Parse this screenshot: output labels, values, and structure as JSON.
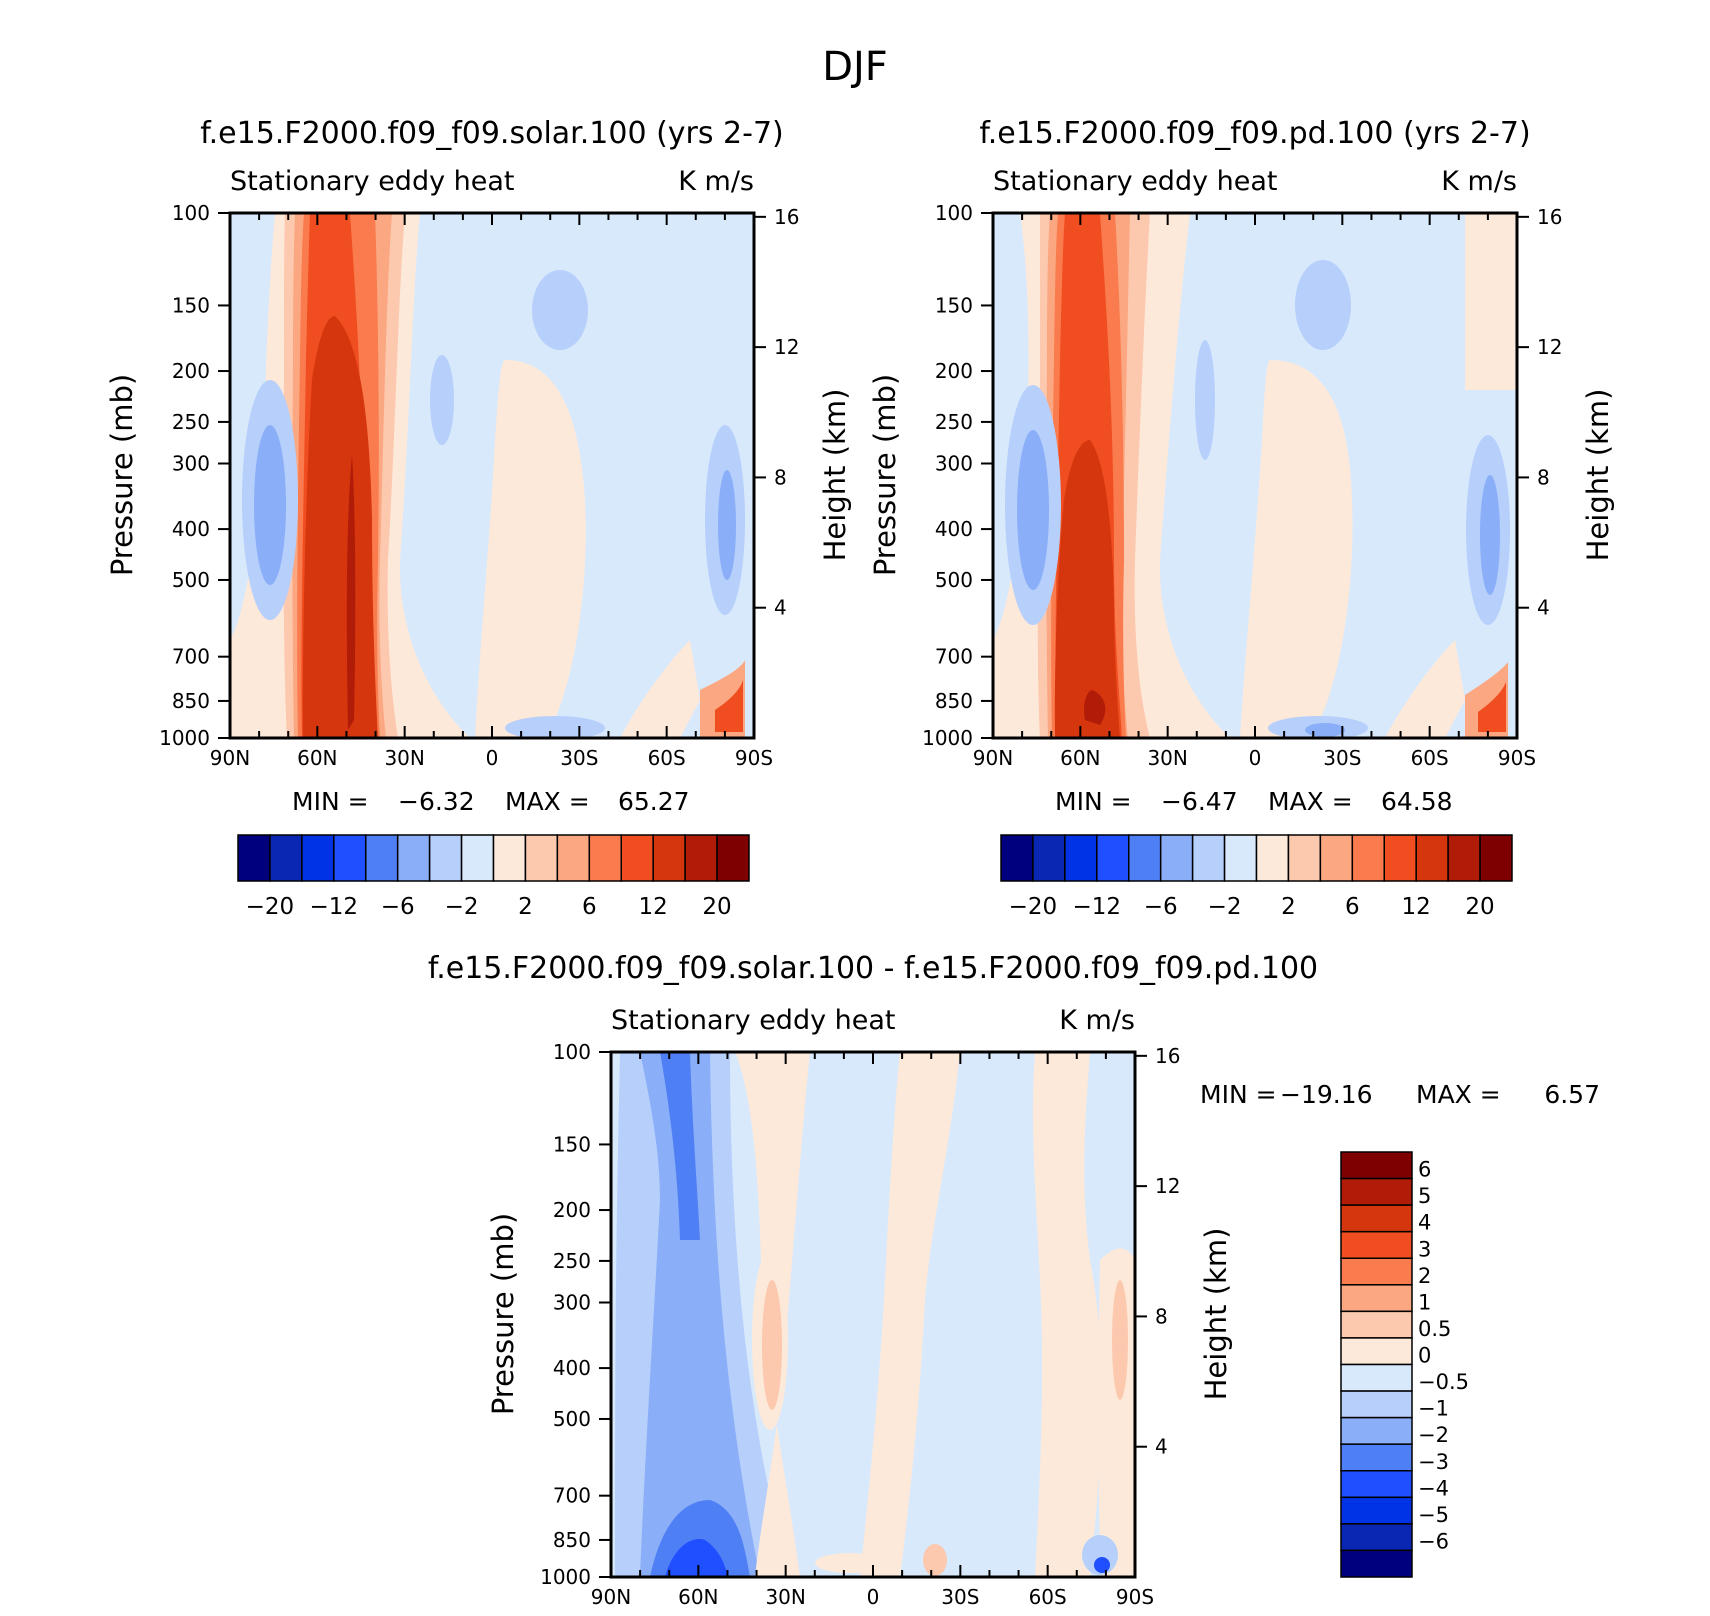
{
  "figure_title": "DJF",
  "chart_data": [
    {
      "type": "contour",
      "title": "f.e15.F2000.f09_f09.solar.100 (yrs 2-7)",
      "subtitle_left": "Stationary eddy heat",
      "subtitle_right": "K m/s",
      "ylabel": "Pressure (mb)",
      "y2label": "Height (km)",
      "x_ticks": [
        "90N",
        "60N",
        "30N",
        "0",
        "30S",
        "60S",
        "90S"
      ],
      "y_ticks": [
        "100",
        "150",
        "200",
        "250",
        "300",
        "400",
        "500",
        "700",
        "850",
        "1000"
      ],
      "y2_ticks": [
        "16",
        "12",
        "8",
        "4"
      ],
      "y_scale": "log-pressure",
      "xlim": [
        90,
        -90
      ],
      "ylim": [
        1000,
        100
      ],
      "stats": {
        "min_label": "MIN =",
        "min": "-6.32",
        "max_label": "MAX =",
        "max": "65.27"
      },
      "colorbar": {
        "orientation": "horizontal",
        "labels": [
          "-20",
          "-12",
          "-6",
          "-2",
          "2",
          "6",
          "12",
          "20"
        ],
        "levels": [
          -20,
          -16,
          -12,
          -8,
          -6,
          -4,
          -2,
          0,
          2,
          4,
          6,
          8,
          12,
          16,
          20
        ]
      }
    },
    {
      "type": "contour",
      "title": "f.e15.F2000.f09_f09.pd.100 (yrs 2-7)",
      "subtitle_left": "Stationary eddy heat",
      "subtitle_right": "K m/s",
      "ylabel": "Pressure (mb)",
      "y2label": "Height (km)",
      "x_ticks": [
        "90N",
        "60N",
        "30N",
        "0",
        "30S",
        "60S",
        "90S"
      ],
      "y_ticks": [
        "100",
        "150",
        "200",
        "250",
        "300",
        "400",
        "500",
        "700",
        "850",
        "1000"
      ],
      "y2_ticks": [
        "16",
        "12",
        "8",
        "4"
      ],
      "y_scale": "log-pressure",
      "xlim": [
        90,
        -90
      ],
      "ylim": [
        1000,
        100
      ],
      "stats": {
        "min_label": "MIN =",
        "min": "-6.47",
        "max_label": "MAX =",
        "max": "64.58"
      },
      "colorbar": {
        "orientation": "horizontal",
        "labels": [
          "-20",
          "-12",
          "-6",
          "-2",
          "2",
          "6",
          "12",
          "20"
        ],
        "levels": [
          -20,
          -16,
          -12,
          -8,
          -6,
          -4,
          -2,
          0,
          2,
          4,
          6,
          8,
          12,
          16,
          20
        ]
      }
    },
    {
      "type": "contour",
      "title": "f.e15.F2000.f09_f09.solar.100 - f.e15.F2000.f09_f09.pd.100",
      "subtitle_left": "Stationary eddy heat",
      "subtitle_right": "K m/s",
      "ylabel": "Pressure (mb)",
      "y2label": "Height (km)",
      "x_ticks": [
        "90N",
        "60N",
        "30N",
        "0",
        "30S",
        "60S",
        "90S"
      ],
      "y_ticks": [
        "100",
        "150",
        "200",
        "250",
        "300",
        "400",
        "500",
        "700",
        "850",
        "1000"
      ],
      "y2_ticks": [
        "16",
        "12",
        "8",
        "4"
      ],
      "y_scale": "log-pressure",
      "xlim": [
        90,
        -90
      ],
      "ylim": [
        1000,
        100
      ],
      "stats": {
        "min_label": "MIN =",
        "min": "-19.16",
        "max_label": "MAX =",
        "max": "6.57"
      },
      "colorbar": {
        "orientation": "vertical",
        "labels": [
          "6",
          "5",
          "4",
          "3",
          "2",
          "1",
          "0.5",
          "0",
          "-0.5",
          "-1",
          "-2",
          "-3",
          "-4",
          "-5",
          "-6"
        ],
        "levels": [
          6,
          5,
          4,
          3,
          2,
          1,
          0.5,
          0,
          -0.5,
          -1,
          -2,
          -3,
          -4,
          -5,
          -6
        ]
      }
    }
  ],
  "colors": {
    "diverging": [
      "#00007f",
      "#0a27b3",
      "#0033e6",
      "#1f4fff",
      "#4f7ff4",
      "#8aaef8",
      "#b6cffb",
      "#d8e9fc",
      "#fde9da",
      "#fcc9af",
      "#fba882",
      "#fa7b4e",
      "#f04e20",
      "#d5360e",
      "#b01c07",
      "#7f0000"
    ]
  }
}
